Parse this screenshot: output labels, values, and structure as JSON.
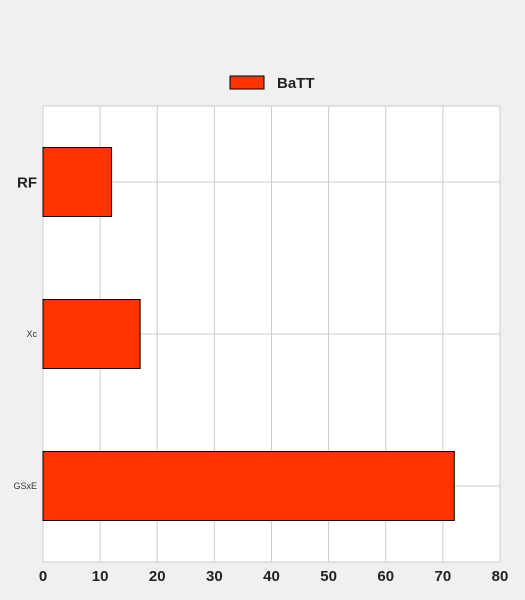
{
  "chart_data": {
    "type": "bar",
    "orientation": "horizontal",
    "categories": [
      "RF",
      "Xc",
      "GSxE"
    ],
    "series": [
      {
        "name": "BaTT",
        "values": [
          12,
          17,
          72
        ],
        "color": "#ff3300"
      }
    ],
    "xlim": [
      0,
      80
    ],
    "x_ticks": [
      "0",
      "10",
      "20",
      "30",
      "40",
      "50",
      "60",
      "70",
      "80"
    ],
    "grid": true,
    "legend_position": "top"
  },
  "colors": {
    "background": "#f0f0f0",
    "plot_background": "#ffffff",
    "grid": "#cccccc",
    "bar_stroke": "#000000"
  }
}
